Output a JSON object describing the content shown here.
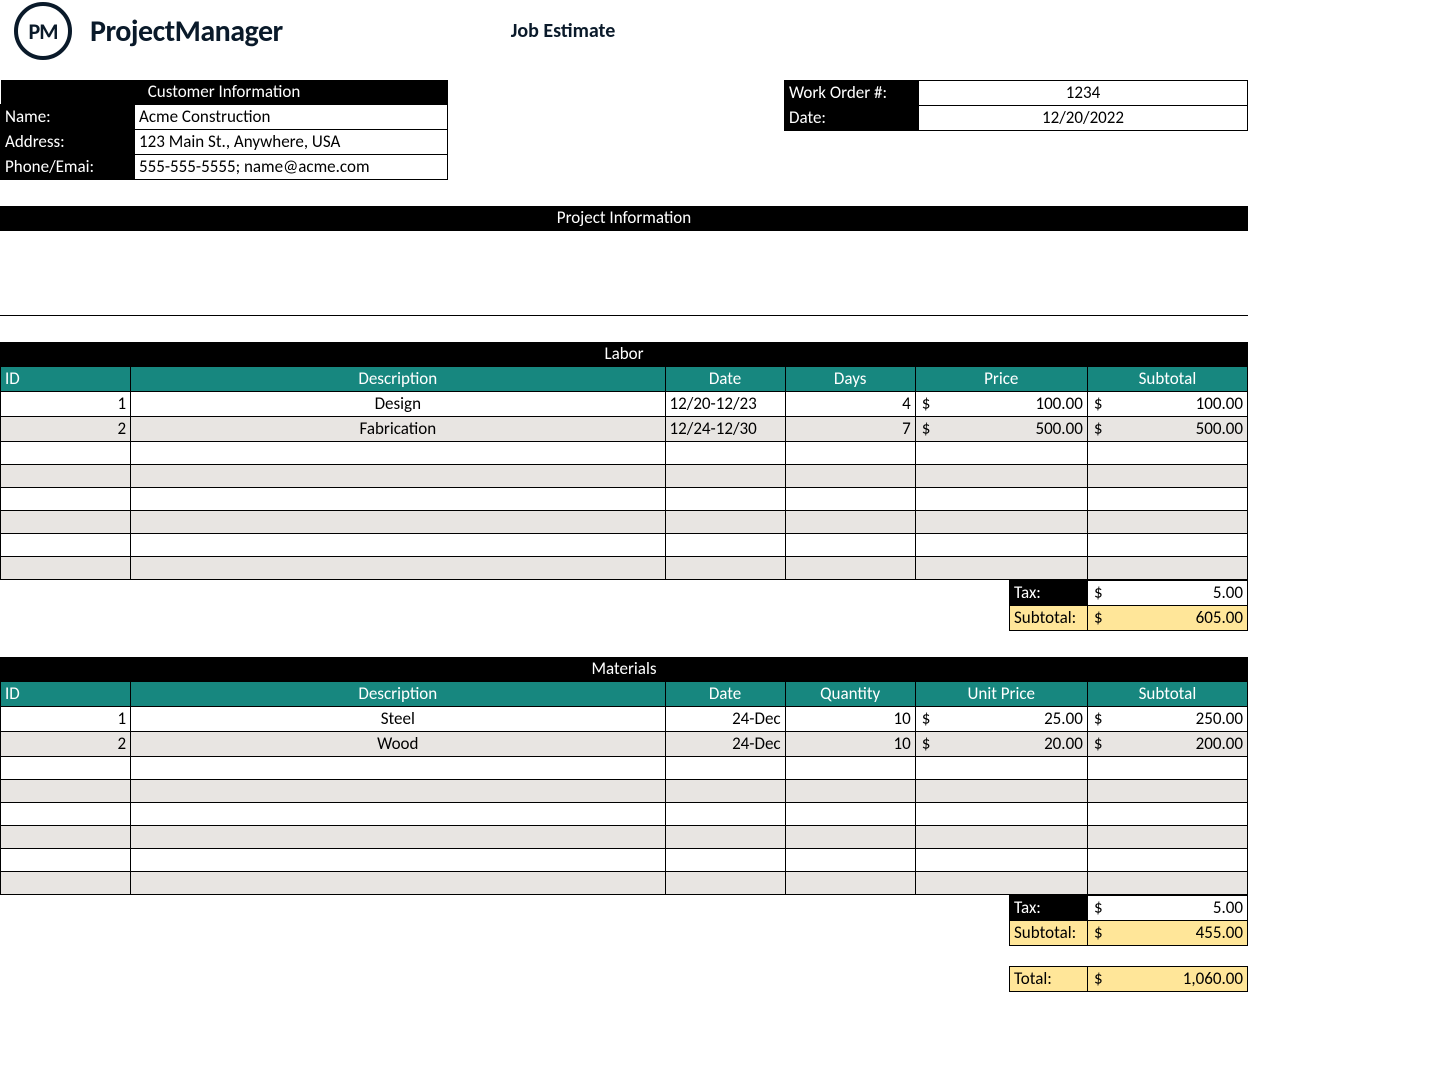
{
  "brand": {
    "logo_text": "PM",
    "name": "ProjectManager"
  },
  "doc_title": "Job Estimate",
  "customer": {
    "header": "Customer Information",
    "labels": {
      "name": "Name:",
      "address": "Address:",
      "phone": "Phone/Emai:"
    },
    "values": {
      "name": "Acme Construction",
      "address": "123 Main St., Anywhere, USA",
      "phone": "555-555-5555; name@acme.com"
    }
  },
  "order": {
    "labels": {
      "work_order": "Work Order #:",
      "date": "Date:"
    },
    "values": {
      "work_order": "1234",
      "date": "12/20/2022"
    }
  },
  "project_info": {
    "header": "Project Information",
    "body": ""
  },
  "labor": {
    "header": "Labor",
    "columns": {
      "id": "ID",
      "desc": "Description",
      "date": "Date",
      "qty": "Days",
      "price": "Price",
      "sub": "Subtotal"
    },
    "rows": [
      {
        "id": "1",
        "desc": "Design",
        "date": "12/20-12/23",
        "qty": "4",
        "price": "100.00",
        "sub": "100.00"
      },
      {
        "id": "2",
        "desc": "Fabrication",
        "date": "12/24-12/30",
        "qty": "7",
        "price": "500.00",
        "sub": "500.00"
      }
    ],
    "blank_rows": 6,
    "tax_label": "Tax:",
    "tax": "5.00",
    "subtotal_label": "Subtotal:",
    "subtotal": "605.00",
    "date_align": "left"
  },
  "materials": {
    "header": "Materials",
    "columns": {
      "id": "ID",
      "desc": "Description",
      "date": "Date",
      "qty": "Quantity",
      "price": "Unit Price",
      "sub": "Subtotal"
    },
    "rows": [
      {
        "id": "1",
        "desc": "Steel",
        "date": "24-Dec",
        "qty": "10",
        "price": "25.00",
        "sub": "250.00"
      },
      {
        "id": "2",
        "desc": "Wood",
        "date": "24-Dec",
        "qty": "10",
        "price": "20.00",
        "sub": "200.00"
      }
    ],
    "blank_rows": 6,
    "tax_label": "Tax:",
    "tax": "5.00",
    "subtotal_label": "Subtotal:",
    "subtotal": "455.00",
    "date_align": "right"
  },
  "grand_total": {
    "label": "Total:",
    "value": "1,060.00"
  },
  "colors": {
    "teal": "#17877f",
    "black": "#000000",
    "gold": "#ffe699",
    "alt_row": "#e8e5e2"
  }
}
